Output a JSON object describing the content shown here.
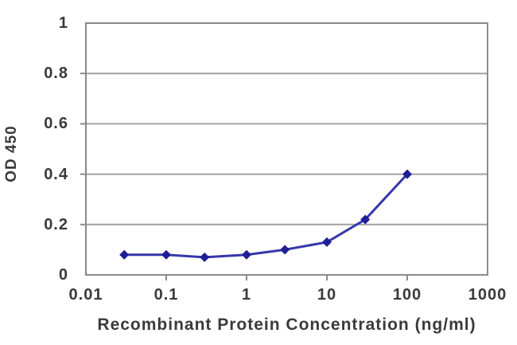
{
  "chart_data": {
    "type": "line",
    "title": "",
    "xlabel": "Recombinant Protein Concentration (ng/ml)",
    "ylabel": "OD 450",
    "x_scale": "log",
    "xlim": [
      0.01,
      1000
    ],
    "ylim": [
      0,
      1
    ],
    "x": [
      0.03,
      0.1,
      0.3,
      1,
      3,
      10,
      30,
      100
    ],
    "y": [
      0.08,
      0.08,
      0.07,
      0.08,
      0.1,
      0.13,
      0.22,
      0.4
    ],
    "x_tick_values": [
      0.01,
      0.1,
      1,
      10,
      100,
      1000
    ],
    "x_tick_labels": [
      "0.01",
      "0.1",
      "1",
      "10",
      "100",
      "1000"
    ],
    "y_tick_values": [
      0,
      0.2,
      0.4,
      0.6,
      0.8,
      1
    ],
    "y_tick_labels": [
      "0",
      "0.2",
      "0.4",
      "0.6",
      "0.8",
      "1"
    ],
    "grid": "horizontal-only",
    "legend_position": "none",
    "marker": "diamond",
    "colors": {
      "line": "#3636ac",
      "marker": "#1e1e96",
      "grid": "#a0a0a0",
      "frame": "#8a8a8a",
      "text": "#3a3a3a",
      "background": "#ffffff"
    }
  }
}
